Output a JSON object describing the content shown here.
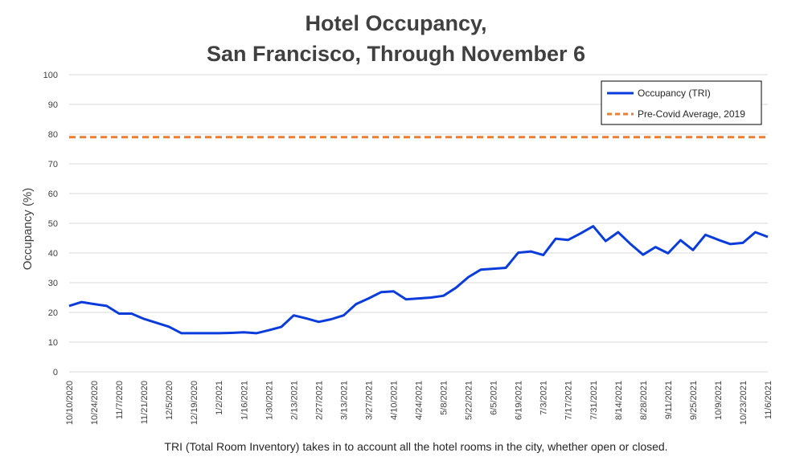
{
  "chart_data": {
    "type": "line",
    "title_line1": "Hotel Occupancy,",
    "title_line2": "San Francisco, Through November 6",
    "ylabel": "Occupancy (%)",
    "xlabel": "",
    "ylim": [
      0,
      100
    ],
    "yticks": [
      "0",
      "10",
      "20",
      "30",
      "40",
      "50",
      "60",
      "70",
      "80",
      "90",
      "100"
    ],
    "footnote": "TRI (Total Room Inventory) takes in to account all the hotel rooms in the city, whether open or closed.",
    "legend_position": "top-right",
    "x": [
      "10/10/2020",
      "10/17/2020",
      "10/24/2020",
      "10/31/2020",
      "11/7/2020",
      "11/14/2020",
      "11/21/2020",
      "11/28/2020",
      "12/5/2020",
      "12/12/2020",
      "12/19/2020",
      "12/26/2020",
      "1/2/2021",
      "1/9/2021",
      "1/16/2021",
      "1/23/2021",
      "1/30/2021",
      "2/6/2021",
      "2/13/2021",
      "2/20/2021",
      "2/27/2021",
      "3/6/2021",
      "3/13/2021",
      "3/20/2021",
      "3/27/2021",
      "4/3/2021",
      "4/10/2021",
      "4/17/2021",
      "4/24/2021",
      "5/1/2021",
      "5/8/2021",
      "5/15/2021",
      "5/22/2021",
      "5/29/2021",
      "6/5/2021",
      "6/12/2021",
      "6/19/2021",
      "6/26/2021",
      "7/3/2021",
      "7/10/2021",
      "7/17/2021",
      "7/24/2021",
      "7/31/2021",
      "8/7/2021",
      "8/14/2021",
      "8/21/2021",
      "8/28/2021",
      "9/4/2021",
      "9/11/2021",
      "9/18/2021",
      "9/25/2021",
      "10/2/2021",
      "10/9/2021",
      "10/16/2021",
      "10/23/2021",
      "10/30/2021",
      "11/6/2021"
    ],
    "x_tick_labels": [
      "10/10/2020",
      "10/24/2020",
      "11/7/2020",
      "11/21/2020",
      "12/5/2020",
      "12/19/2020",
      "1/2/2021",
      "1/16/2021",
      "1/30/2021",
      "2/13/2021",
      "2/27/2021",
      "3/13/2021",
      "3/27/2021",
      "4/10/2021",
      "4/24/2021",
      "5/8/2021",
      "5/22/2021",
      "6/5/2021",
      "6/19/2021",
      "7/3/2021",
      "7/17/2021",
      "7/31/2021",
      "8/14/2021",
      "8/28/2021",
      "9/11/2021",
      "9/25/2021",
      "10/9/2021",
      "10/23/2021",
      "11/6/2021"
    ],
    "series": [
      {
        "name": "Occupancy (TRI)",
        "color": "#0a3cdc",
        "style": "solid",
        "values": [
          22.2,
          23.5,
          22.8,
          22.2,
          19.6,
          19.6,
          17.8,
          16.5,
          15.2,
          13.0,
          13.0,
          13.0,
          13.0,
          13.1,
          13.3,
          13.0,
          14.0,
          15.1,
          19.0,
          18.0,
          16.8,
          17.7,
          19.0,
          22.8,
          24.7,
          26.8,
          27.1,
          24.4,
          24.7,
          25.0,
          25.6,
          28.3,
          31.9,
          34.4,
          34.7,
          35.0,
          40.1,
          40.5,
          39.3,
          44.8,
          44.4,
          46.6,
          49.0,
          44.0,
          47.0,
          43.0,
          39.4,
          42.0,
          39.9,
          44.3,
          41.0,
          46.1,
          44.5,
          43.0,
          43.4,
          47.0,
          45.4
        ]
      },
      {
        "name": "Pre-Covid Average, 2019",
        "color": "#ed7d31",
        "style": "dashed",
        "values": [
          79,
          79,
          79,
          79,
          79,
          79,
          79,
          79,
          79,
          79,
          79,
          79,
          79,
          79,
          79,
          79,
          79,
          79,
          79,
          79,
          79,
          79,
          79,
          79,
          79,
          79,
          79,
          79,
          79,
          79,
          79,
          79,
          79,
          79,
          79,
          79,
          79,
          79,
          79,
          79,
          79,
          79,
          79,
          79,
          79,
          79,
          79,
          79,
          79,
          79,
          79,
          79,
          79,
          79,
          79,
          79,
          79
        ]
      }
    ],
    "grid": true
  }
}
